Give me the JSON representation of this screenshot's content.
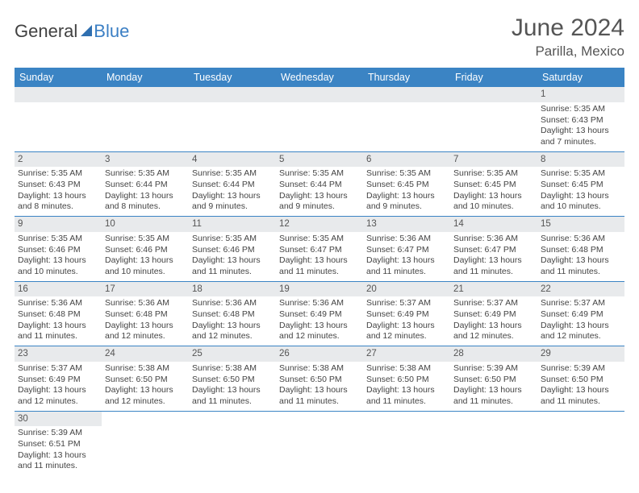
{
  "brand": {
    "part1": "General",
    "part2": "Blue"
  },
  "title": "June 2024",
  "subtitle": "Parilla, Mexico",
  "colors": {
    "header_bg": "#3b84c4",
    "daynum_bg": "#e8eaec",
    "rule": "#3b84c4"
  },
  "weekdays": [
    "Sunday",
    "Monday",
    "Tuesday",
    "Wednesday",
    "Thursday",
    "Friday",
    "Saturday"
  ],
  "weeks": [
    [
      null,
      null,
      null,
      null,
      null,
      null,
      {
        "n": "1",
        "sr": "Sunrise: 5:35 AM",
        "ss": "Sunset: 6:43 PM",
        "d1": "Daylight: 13 hours",
        "d2": "and 7 minutes."
      }
    ],
    [
      {
        "n": "2",
        "sr": "Sunrise: 5:35 AM",
        "ss": "Sunset: 6:43 PM",
        "d1": "Daylight: 13 hours",
        "d2": "and 8 minutes."
      },
      {
        "n": "3",
        "sr": "Sunrise: 5:35 AM",
        "ss": "Sunset: 6:44 PM",
        "d1": "Daylight: 13 hours",
        "d2": "and 8 minutes."
      },
      {
        "n": "4",
        "sr": "Sunrise: 5:35 AM",
        "ss": "Sunset: 6:44 PM",
        "d1": "Daylight: 13 hours",
        "d2": "and 9 minutes."
      },
      {
        "n": "5",
        "sr": "Sunrise: 5:35 AM",
        "ss": "Sunset: 6:44 PM",
        "d1": "Daylight: 13 hours",
        "d2": "and 9 minutes."
      },
      {
        "n": "6",
        "sr": "Sunrise: 5:35 AM",
        "ss": "Sunset: 6:45 PM",
        "d1": "Daylight: 13 hours",
        "d2": "and 9 minutes."
      },
      {
        "n": "7",
        "sr": "Sunrise: 5:35 AM",
        "ss": "Sunset: 6:45 PM",
        "d1": "Daylight: 13 hours",
        "d2": "and 10 minutes."
      },
      {
        "n": "8",
        "sr": "Sunrise: 5:35 AM",
        "ss": "Sunset: 6:45 PM",
        "d1": "Daylight: 13 hours",
        "d2": "and 10 minutes."
      }
    ],
    [
      {
        "n": "9",
        "sr": "Sunrise: 5:35 AM",
        "ss": "Sunset: 6:46 PM",
        "d1": "Daylight: 13 hours",
        "d2": "and 10 minutes."
      },
      {
        "n": "10",
        "sr": "Sunrise: 5:35 AM",
        "ss": "Sunset: 6:46 PM",
        "d1": "Daylight: 13 hours",
        "d2": "and 10 minutes."
      },
      {
        "n": "11",
        "sr": "Sunrise: 5:35 AM",
        "ss": "Sunset: 6:46 PM",
        "d1": "Daylight: 13 hours",
        "d2": "and 11 minutes."
      },
      {
        "n": "12",
        "sr": "Sunrise: 5:35 AM",
        "ss": "Sunset: 6:47 PM",
        "d1": "Daylight: 13 hours",
        "d2": "and 11 minutes."
      },
      {
        "n": "13",
        "sr": "Sunrise: 5:36 AM",
        "ss": "Sunset: 6:47 PM",
        "d1": "Daylight: 13 hours",
        "d2": "and 11 minutes."
      },
      {
        "n": "14",
        "sr": "Sunrise: 5:36 AM",
        "ss": "Sunset: 6:47 PM",
        "d1": "Daylight: 13 hours",
        "d2": "and 11 minutes."
      },
      {
        "n": "15",
        "sr": "Sunrise: 5:36 AM",
        "ss": "Sunset: 6:48 PM",
        "d1": "Daylight: 13 hours",
        "d2": "and 11 minutes."
      }
    ],
    [
      {
        "n": "16",
        "sr": "Sunrise: 5:36 AM",
        "ss": "Sunset: 6:48 PM",
        "d1": "Daylight: 13 hours",
        "d2": "and 11 minutes."
      },
      {
        "n": "17",
        "sr": "Sunrise: 5:36 AM",
        "ss": "Sunset: 6:48 PM",
        "d1": "Daylight: 13 hours",
        "d2": "and 12 minutes."
      },
      {
        "n": "18",
        "sr": "Sunrise: 5:36 AM",
        "ss": "Sunset: 6:48 PM",
        "d1": "Daylight: 13 hours",
        "d2": "and 12 minutes."
      },
      {
        "n": "19",
        "sr": "Sunrise: 5:36 AM",
        "ss": "Sunset: 6:49 PM",
        "d1": "Daylight: 13 hours",
        "d2": "and 12 minutes."
      },
      {
        "n": "20",
        "sr": "Sunrise: 5:37 AM",
        "ss": "Sunset: 6:49 PM",
        "d1": "Daylight: 13 hours",
        "d2": "and 12 minutes."
      },
      {
        "n": "21",
        "sr": "Sunrise: 5:37 AM",
        "ss": "Sunset: 6:49 PM",
        "d1": "Daylight: 13 hours",
        "d2": "and 12 minutes."
      },
      {
        "n": "22",
        "sr": "Sunrise: 5:37 AM",
        "ss": "Sunset: 6:49 PM",
        "d1": "Daylight: 13 hours",
        "d2": "and 12 minutes."
      }
    ],
    [
      {
        "n": "23",
        "sr": "Sunrise: 5:37 AM",
        "ss": "Sunset: 6:49 PM",
        "d1": "Daylight: 13 hours",
        "d2": "and 12 minutes."
      },
      {
        "n": "24",
        "sr": "Sunrise: 5:38 AM",
        "ss": "Sunset: 6:50 PM",
        "d1": "Daylight: 13 hours",
        "d2": "and 12 minutes."
      },
      {
        "n": "25",
        "sr": "Sunrise: 5:38 AM",
        "ss": "Sunset: 6:50 PM",
        "d1": "Daylight: 13 hours",
        "d2": "and 11 minutes."
      },
      {
        "n": "26",
        "sr": "Sunrise: 5:38 AM",
        "ss": "Sunset: 6:50 PM",
        "d1": "Daylight: 13 hours",
        "d2": "and 11 minutes."
      },
      {
        "n": "27",
        "sr": "Sunrise: 5:38 AM",
        "ss": "Sunset: 6:50 PM",
        "d1": "Daylight: 13 hours",
        "d2": "and 11 minutes."
      },
      {
        "n": "28",
        "sr": "Sunrise: 5:39 AM",
        "ss": "Sunset: 6:50 PM",
        "d1": "Daylight: 13 hours",
        "d2": "and 11 minutes."
      },
      {
        "n": "29",
        "sr": "Sunrise: 5:39 AM",
        "ss": "Sunset: 6:50 PM",
        "d1": "Daylight: 13 hours",
        "d2": "and 11 minutes."
      }
    ],
    [
      {
        "n": "30",
        "sr": "Sunrise: 5:39 AM",
        "ss": "Sunset: 6:51 PM",
        "d1": "Daylight: 13 hours",
        "d2": "and 11 minutes."
      },
      null,
      null,
      null,
      null,
      null,
      null
    ]
  ]
}
